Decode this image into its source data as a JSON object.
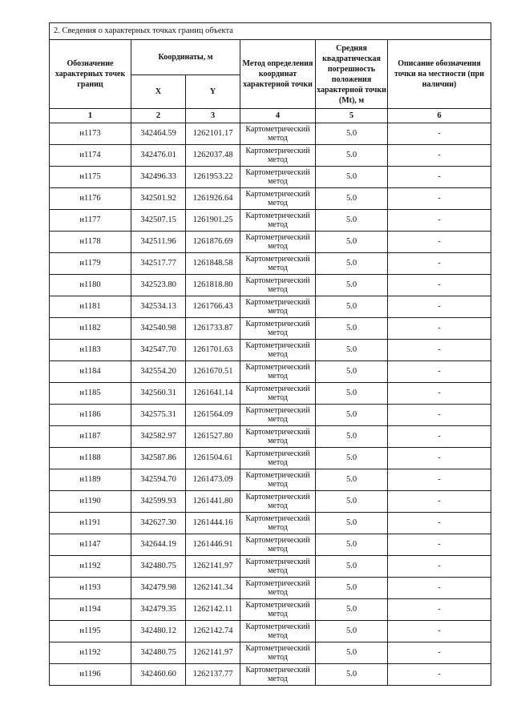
{
  "section": {
    "title": "2. Сведения о характерных точках границ объекта"
  },
  "table": {
    "headers": {
      "designation": "Обозначение характерных точек границ",
      "coordinates_group": "Координаты, м",
      "x": "X",
      "y": "Y",
      "method": "Метод определения координат характерной точки",
      "error": "Средняя квадратическая погрешность положения характерной точки (Mt), м",
      "description": "Описание обозначения точки на местности (при наличии)"
    },
    "column_numbers": [
      "1",
      "2",
      "3",
      "4",
      "5",
      "6"
    ],
    "rows": [
      {
        "point": "н1173",
        "x": "342464.59",
        "y": "1262101.17",
        "method": "Картометрический метод",
        "mt": "5.0",
        "description": "-"
      },
      {
        "point": "н1174",
        "x": "342476.01",
        "y": "1262037.48",
        "method": "Картометрический метод",
        "mt": "5.0",
        "description": "-"
      },
      {
        "point": "н1175",
        "x": "342496.33",
        "y": "1261953.22",
        "method": "Картометрический метод",
        "mt": "5.0",
        "description": "-"
      },
      {
        "point": "н1176",
        "x": "342501.92",
        "y": "1261926.64",
        "method": "Картометрический метод",
        "mt": "5.0",
        "description": "-"
      },
      {
        "point": "н1177",
        "x": "342507.15",
        "y": "1261901.25",
        "method": "Картометрический метод",
        "mt": "5.0",
        "description": "-"
      },
      {
        "point": "н1178",
        "x": "342511.96",
        "y": "1261876.69",
        "method": "Картометрический метод",
        "mt": "5.0",
        "description": "-"
      },
      {
        "point": "н1179",
        "x": "342517.77",
        "y": "1261848.58",
        "method": "Картометрический метод",
        "mt": "5.0",
        "description": "-"
      },
      {
        "point": "н1180",
        "x": "342523.80",
        "y": "1261818.80",
        "method": "Картометрический метод",
        "mt": "5.0",
        "description": "-"
      },
      {
        "point": "н1181",
        "x": "342534.13",
        "y": "1261766.43",
        "method": "Картометрический метод",
        "mt": "5.0",
        "description": "-"
      },
      {
        "point": "н1182",
        "x": "342540.98",
        "y": "1261733.87",
        "method": "Картометрический метод",
        "mt": "5.0",
        "description": "-"
      },
      {
        "point": "н1183",
        "x": "342547.70",
        "y": "1261701.63",
        "method": "Картометрический метод",
        "mt": "5.0",
        "description": "-"
      },
      {
        "point": "н1184",
        "x": "342554.20",
        "y": "1261670.51",
        "method": "Картометрический метод",
        "mt": "5.0",
        "description": "-"
      },
      {
        "point": "н1185",
        "x": "342560.31",
        "y": "1261641.14",
        "method": "Картометрический метод",
        "mt": "5.0",
        "description": "-"
      },
      {
        "point": "н1186",
        "x": "342575.31",
        "y": "1261564.09",
        "method": "Картометрический метод",
        "mt": "5.0",
        "description": "-"
      },
      {
        "point": "н1187",
        "x": "342582.97",
        "y": "1261527.80",
        "method": "Картометрический метод",
        "mt": "5.0",
        "description": "-"
      },
      {
        "point": "н1188",
        "x": "342587.86",
        "y": "1261504.61",
        "method": "Картометрический метод",
        "mt": "5.0",
        "description": "-"
      },
      {
        "point": "н1189",
        "x": "342594.70",
        "y": "1261473.09",
        "method": "Картометрический метод",
        "mt": "5.0",
        "description": "-"
      },
      {
        "point": "н1190",
        "x": "342599.93",
        "y": "1261441.80",
        "method": "Картометрический метод",
        "mt": "5.0",
        "description": "-"
      },
      {
        "point": "н1191",
        "x": "342627.30",
        "y": "1261444.16",
        "method": "Картометрический метод",
        "mt": "5.0",
        "description": "-"
      },
      {
        "point": "н1147",
        "x": "342644.19",
        "y": "1261446.91",
        "method": "Картометрический метод",
        "mt": "5.0",
        "description": "-"
      },
      {
        "point": "н1192",
        "x": "342480.75",
        "y": "1262141.97",
        "method": "Картометрический метод",
        "mt": "5.0",
        "description": "-"
      },
      {
        "point": "н1193",
        "x": "342479.98",
        "y": "1262141.34",
        "method": "Картометрический метод",
        "mt": "5.0",
        "description": "-"
      },
      {
        "point": "н1194",
        "x": "342479.35",
        "y": "1262142.11",
        "method": "Картометрический метод",
        "mt": "5.0",
        "description": "-"
      },
      {
        "point": "н1195",
        "x": "342480.12",
        "y": "1262142.74",
        "method": "Картометрический метод",
        "mt": "5.0",
        "description": "-"
      },
      {
        "point": "н1192",
        "x": "342480.75",
        "y": "1262141.97",
        "method": "Картометрический метод",
        "mt": "5.0",
        "description": "-"
      },
      {
        "point": "н1196",
        "x": "342460.60",
        "y": "1262137.77",
        "method": "Картометрический метод",
        "mt": "5.0",
        "description": "-"
      }
    ]
  }
}
